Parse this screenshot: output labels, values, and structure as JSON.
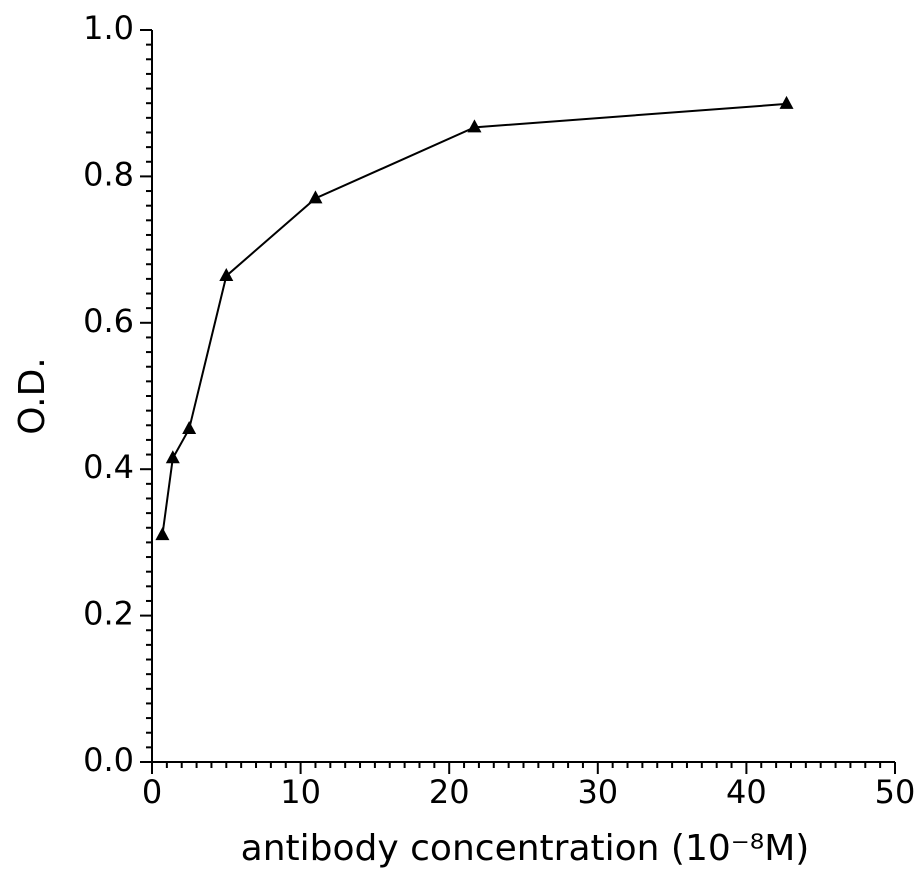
{
  "chart_data": {
    "type": "line",
    "x_label": "antibody concentration (10⁻⁸M)",
    "y_label": "O.D.",
    "series": [
      {
        "color": "#000000",
        "marker": "triangle",
        "x": [
          0.7,
          1.4,
          2.5,
          5,
          11,
          21.7,
          42.7
        ],
        "values": [
          0.31,
          0.415,
          0.455,
          0.664,
          0.77,
          0.867,
          0.899
        ]
      }
    ],
    "xlim": [
      0,
      50
    ],
    "ylim": [
      0,
      1
    ],
    "xticks": [
      0,
      10,
      20,
      30,
      40,
      50
    ],
    "yticks": [
      {
        "value": 0,
        "label": "0.0"
      },
      0.2,
      0.4,
      0.6,
      0.8,
      {
        "value": 1,
        "label": "1.0"
      }
    ],
    "xminorticks": [
      1,
      2,
      3,
      4,
      5,
      6,
      7,
      8,
      9,
      11,
      12,
      13,
      14,
      15,
      16,
      17,
      18,
      19,
      21,
      22,
      23,
      24,
      25,
      26,
      27,
      28,
      29,
      31,
      32,
      33,
      34,
      35,
      36,
      37,
      38,
      39,
      41,
      42,
      43,
      44,
      45,
      46,
      47,
      48,
      49
    ],
    "yminorticks": [
      0.02,
      0.04,
      0.06,
      0.08,
      0.1,
      0.12,
      0.14,
      0.16,
      0.18,
      0.22,
      0.24,
      0.26,
      0.28,
      0.3,
      0.32,
      0.34,
      0.36,
      0.38,
      0.42,
      0.44,
      0.46,
      0.48,
      0.5,
      0.52,
      0.54,
      0.56,
      0.58,
      0.62,
      0.64,
      0.66,
      0.68,
      0.7,
      0.72,
      0.74,
      0.76,
      0.78,
      0.82,
      0.84,
      0.86,
      0.88,
      0.9,
      0.92,
      0.94,
      0.96,
      0.98
    ],
    "grid": false
  }
}
